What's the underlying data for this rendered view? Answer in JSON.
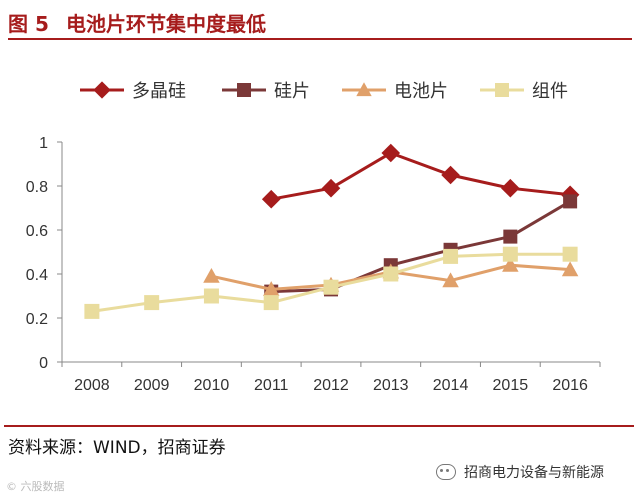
{
  "header": {
    "figure_number": "图 5",
    "title": "电池片环节集中度最低"
  },
  "footer": {
    "source": "资料来源：WIND，招商证券",
    "brand": "招商电力设备与新能源",
    "watermark": "© 六股数据"
  },
  "icons": {
    "brand": "wechat-icon"
  },
  "colors": {
    "title": "#a61c1c",
    "polysilicon": "#a61c1c",
    "wafer": "#7b3838",
    "cell": "#e0a06a",
    "module": "#e9dc9d",
    "axis": "#888888"
  },
  "chart_data": {
    "type": "line",
    "title": "",
    "xlabel": "",
    "ylabel": "",
    "categories": [
      "2008",
      "2009",
      "2010",
      "2011",
      "2012",
      "2013",
      "2014",
      "2015",
      "2016"
    ],
    "ylim": [
      0,
      1
    ],
    "yticks": [
      "0",
      "0.2",
      "0.4",
      "0.6",
      "0.8",
      "1"
    ],
    "legend_position": "top",
    "grid": false,
    "series": [
      {
        "name": "多晶硅",
        "marker": "diamond",
        "color": "#a61c1c",
        "values": [
          null,
          null,
          null,
          0.74,
          0.79,
          0.95,
          0.85,
          0.79,
          0.76
        ]
      },
      {
        "name": "硅片",
        "marker": "square",
        "color": "#7b3838",
        "values": [
          null,
          null,
          null,
          0.32,
          0.33,
          0.44,
          0.51,
          0.57,
          0.73
        ]
      },
      {
        "name": "电池片",
        "marker": "triangle",
        "color": "#e0a06a",
        "values": [
          null,
          null,
          0.39,
          0.33,
          0.35,
          0.41,
          0.37,
          0.44,
          0.42
        ]
      },
      {
        "name": "组件",
        "marker": "square",
        "color": "#e9dc9d",
        "values": [
          0.23,
          0.27,
          0.3,
          0.27,
          0.34,
          0.4,
          0.48,
          0.49,
          0.49
        ]
      }
    ]
  }
}
